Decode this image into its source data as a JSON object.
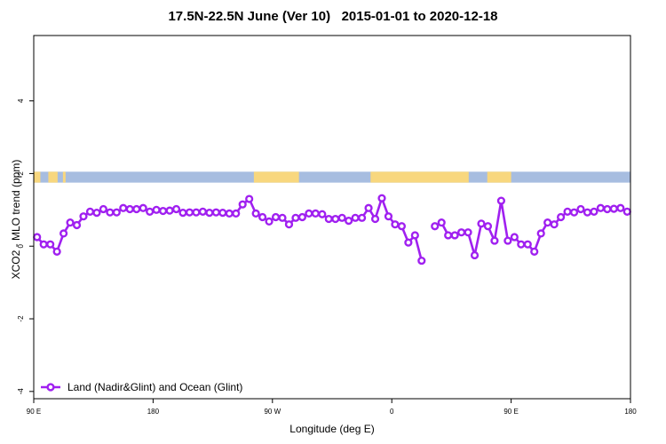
{
  "chart_data": {
    "type": "line",
    "title": "17.5N-22.5N June (Ver 10)   2015-01-01 to 2020-12-18",
    "xlabel": "Longitude (deg E)",
    "ylabel": "XCO2 - MLO trend (ppm)",
    "x_ticks": [
      {
        "value": 0,
        "label": "90 E"
      },
      {
        "value": 90,
        "label": "180"
      },
      {
        "value": 180,
        "label": "90 W"
      },
      {
        "value": 270,
        "label": "0"
      },
      {
        "value": 360,
        "label": "90 E"
      },
      {
        "value": 450,
        "label": "180"
      }
    ],
    "y_ticks": [
      {
        "value": -4,
        "label": "-4"
      },
      {
        "value": -2,
        "label": "-2"
      },
      {
        "value": 0,
        "label": "0"
      },
      {
        "value": 2,
        "label": "2"
      },
      {
        "value": 4,
        "label": "4"
      }
    ],
    "xlim": [
      0,
      450
    ],
    "ylim": [
      -4.2,
      5.8
    ],
    "legend_position": "bottom-left",
    "land_ocean_band": {
      "y_range": [
        1.75,
        2.05
      ],
      "ocean_color": "#a7bde0",
      "land_color": "#f8d77e",
      "land_segments": [
        [
          0,
          5
        ],
        [
          11,
          18
        ],
        [
          22,
          24
        ],
        [
          166,
          200
        ],
        [
          254,
          328
        ],
        [
          342,
          360
        ]
      ]
    },
    "series": [
      {
        "name": "Land (Nadir&Glint) and Ocean (Glint)",
        "color": "#a020f0",
        "segments": [
          [
            [
              2.5,
              0.25
            ],
            [
              7.5,
              0.05
            ],
            [
              12.5,
              0.05
            ],
            [
              17.5,
              -0.15
            ],
            [
              22.5,
              0.35
            ],
            [
              27.5,
              0.65
            ],
            [
              32.5,
              0.58
            ],
            [
              37.5,
              0.82
            ],
            [
              42.5,
              0.95
            ],
            [
              47.5,
              0.92
            ],
            [
              52.5,
              1.02
            ],
            [
              57.5,
              0.93
            ],
            [
              62.5,
              0.93
            ],
            [
              67.5,
              1.05
            ],
            [
              72.5,
              1.02
            ],
            [
              77.5,
              1.02
            ],
            [
              82.5,
              1.05
            ],
            [
              87.5,
              0.95
            ],
            [
              92.5,
              1.0
            ],
            [
              97.5,
              0.97
            ],
            [
              102.5,
              0.98
            ],
            [
              107.5,
              1.02
            ],
            [
              112.5,
              0.92
            ],
            [
              117.5,
              0.93
            ],
            [
              122.5,
              0.93
            ],
            [
              127.5,
              0.95
            ],
            [
              132.5,
              0.92
            ],
            [
              137.5,
              0.93
            ],
            [
              142.5,
              0.92
            ],
            [
              147.5,
              0.9
            ],
            [
              152.5,
              0.9
            ],
            [
              157.5,
              1.15
            ],
            [
              162.5,
              1.3
            ],
            [
              167.5,
              0.9
            ],
            [
              172.5,
              0.8
            ],
            [
              177.5,
              0.68
            ],
            [
              182.5,
              0.8
            ],
            [
              187.5,
              0.78
            ],
            [
              192.5,
              0.6
            ],
            [
              197.5,
              0.78
            ],
            [
              202.5,
              0.8
            ],
            [
              207.5,
              0.9
            ],
            [
              212.5,
              0.9
            ],
            [
              217.5,
              0.88
            ],
            [
              222.5,
              0.75
            ],
            [
              227.5,
              0.75
            ],
            [
              232.5,
              0.78
            ],
            [
              237.5,
              0.7
            ],
            [
              242.5,
              0.78
            ],
            [
              247.5,
              0.78
            ],
            [
              252.5,
              1.05
            ],
            [
              257.5,
              0.75
            ],
            [
              262.5,
              1.32
            ],
            [
              267.5,
              0.82
            ],
            [
              272.5,
              0.6
            ],
            [
              277.5,
              0.55
            ],
            [
              282.5,
              0.1
            ],
            [
              287.5,
              0.3
            ],
            [
              292.5,
              -0.4
            ]
          ],
          [
            [
              302.5,
              0.55
            ],
            [
              307.5,
              0.65
            ],
            [
              312.5,
              0.3
            ],
            [
              317.5,
              0.3
            ],
            [
              322.5,
              0.38
            ],
            [
              327.5,
              0.38
            ],
            [
              332.5,
              -0.25
            ],
            [
              337.5,
              0.62
            ],
            [
              342.5,
              0.55
            ],
            [
              347.5,
              0.15
            ],
            [
              352.5,
              1.25
            ],
            [
              357.5,
              0.15
            ],
            [
              362.5,
              0.25
            ],
            [
              367.5,
              0.05
            ],
            [
              372.5,
              0.05
            ],
            [
              377.5,
              -0.15
            ],
            [
              382.5,
              0.35
            ],
            [
              387.5,
              0.65
            ],
            [
              392.5,
              0.6
            ],
            [
              397.5,
              0.8
            ],
            [
              402.5,
              0.95
            ],
            [
              407.5,
              0.93
            ],
            [
              412.5,
              1.02
            ],
            [
              417.5,
              0.93
            ],
            [
              422.5,
              0.95
            ],
            [
              427.5,
              1.05
            ],
            [
              432.5,
              1.02
            ],
            [
              437.5,
              1.03
            ],
            [
              442.5,
              1.05
            ],
            [
              447.5,
              0.95
            ]
          ]
        ]
      }
    ]
  }
}
